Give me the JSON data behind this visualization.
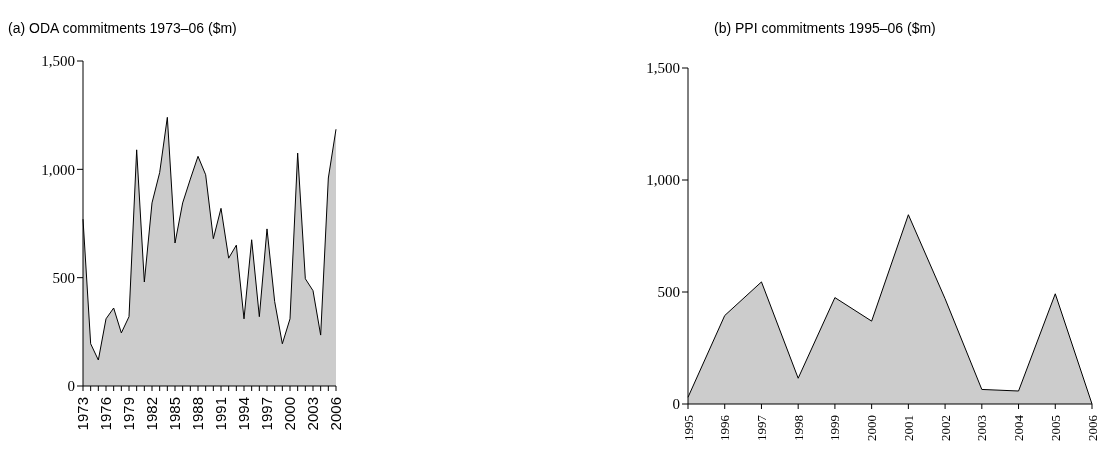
{
  "chart_data": [
    {
      "type": "area",
      "title": "(a) ODA commitments 1973–06 ($m)",
      "categories": [
        "1973",
        null,
        null,
        "1976",
        null,
        null,
        "1979",
        null,
        null,
        "1982",
        null,
        null,
        "1985",
        null,
        null,
        "1988",
        null,
        null,
        "1991",
        null,
        null,
        "1994",
        null,
        null,
        "1997",
        null,
        null,
        "2000",
        null,
        null,
        "2003",
        null,
        null,
        "2006"
      ],
      "series": [
        {
          "color": "#cccccc",
          "values": [
            770,
            195,
            120,
            310,
            360,
            245,
            320,
            1090,
            480,
            845,
            985,
            1240,
            660,
            845,
            955,
            1060,
            975,
            680,
            820,
            590,
            650,
            310,
            675,
            320,
            725,
            390,
            195,
            310,
            1075,
            495,
            440,
            235,
            960,
            1185
          ]
        }
      ],
      "ylim": [
        0,
        1500
      ],
      "yticks": [
        0,
        {
          "value": 500,
          "label": "500"
        },
        {
          "value": 1000,
          "label": "1,000"
        },
        {
          "value": 1500,
          "label": "1,500"
        }
      ],
      "grid": false,
      "legend": false
    },
    {
      "type": "area",
      "title": "(b) PPI commitments 1995–06 ($m)",
      "categories": [
        "1995",
        "1996",
        "1997",
        "1998",
        "1999",
        "2000",
        "2001",
        "2002",
        "2003",
        "2004",
        "2005",
        "2006"
      ],
      "series": [
        {
          "color": "#cccccc",
          "values": [
            30,
            395,
            545,
            115,
            475,
            370,
            845,
            470,
            65,
            58,
            492,
            0
          ]
        }
      ],
      "ylim": [
        0,
        1500
      ],
      "yticks": [
        0,
        {
          "value": 500,
          "label": "500"
        },
        {
          "value": 1000,
          "label": "1,000"
        },
        {
          "value": 1500,
          "label": "1,500"
        }
      ],
      "grid": false,
      "legend": false
    }
  ]
}
